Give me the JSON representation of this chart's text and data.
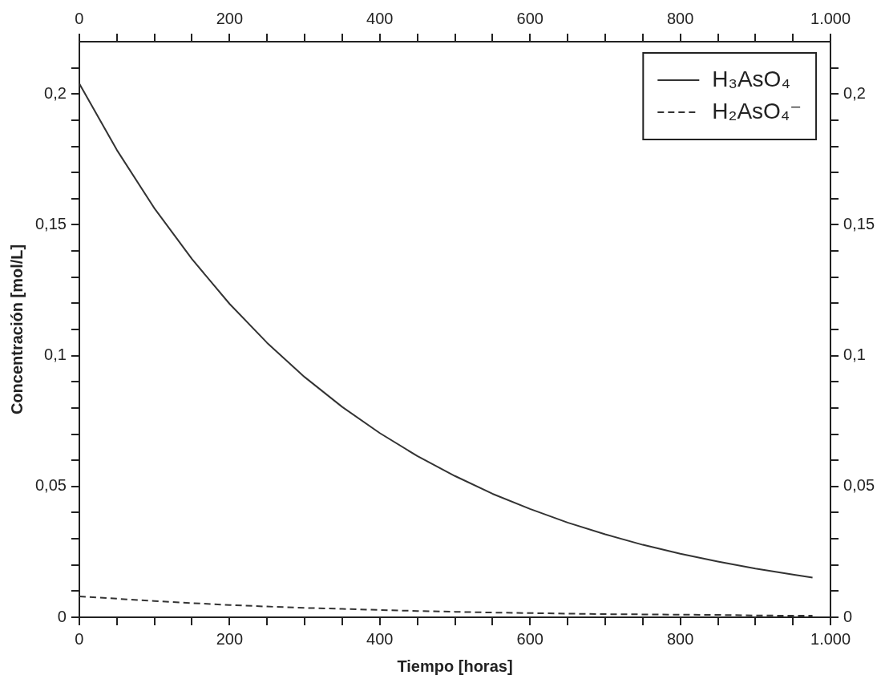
{
  "chart_data": {
    "type": "line",
    "xlabel": "Tiempo [horas]",
    "ylabel": "Concentración [mol/L]",
    "x": [
      0,
      50,
      100,
      150,
      200,
      250,
      300,
      350,
      400,
      450,
      500,
      550,
      600,
      650,
      700,
      750,
      800,
      850,
      900,
      950,
      976
    ],
    "series": [
      {
        "name": "H₃AsO₄",
        "color": "#333333",
        "line_style": "solid",
        "values": [
          0.204,
          0.1786,
          0.1563,
          0.1369,
          0.1198,
          0.1049,
          0.0918,
          0.0804,
          0.0704,
          0.0616,
          0.054,
          0.0472,
          0.0414,
          0.0362,
          0.0317,
          0.0277,
          0.0243,
          0.0213,
          0.0186,
          0.0163,
          0.0152
        ]
      },
      {
        "name": "H₂AsO₄⁻",
        "color": "#333333",
        "line_style": "dashed",
        "values": [
          0.008,
          0.0071,
          0.0062,
          0.0054,
          0.0047,
          0.0041,
          0.0036,
          0.0032,
          0.0028,
          0.0024,
          0.0021,
          0.0018,
          0.0016,
          0.0014,
          0.0012,
          0.0011,
          0.001,
          0.0009,
          0.0007,
          0.0006,
          0.0006
        ]
      }
    ],
    "xlim": [
      0,
      1000
    ],
    "xticks": [
      0,
      {
        "value": 50,
        "label": null
      },
      {
        "value": 100,
        "label": null
      },
      {
        "value": 150,
        "label": null
      },
      200,
      {
        "value": 250,
        "label": null
      },
      {
        "value": 300,
        "label": null
      },
      {
        "value": 350,
        "label": null
      },
      400,
      {
        "value": 450,
        "label": null
      },
      {
        "value": 500,
        "label": null
      },
      {
        "value": 550,
        "label": null
      },
      600,
      {
        "value": 650,
        "label": null
      },
      {
        "value": 700,
        "label": null
      },
      {
        "value": 750,
        "label": null
      },
      800,
      {
        "value": 850,
        "label": null
      },
      {
        "value": 900,
        "label": null
      },
      {
        "value": 950,
        "label": null
      },
      {
        "value": 1000,
        "label": "1.000"
      }
    ],
    "x2lim": [
      0,
      1000
    ],
    "x2ticks": [
      0,
      {
        "value": 50,
        "label": null
      },
      {
        "value": 100,
        "label": null
      },
      {
        "value": 150,
        "label": null
      },
      200,
      {
        "value": 250,
        "label": null
      },
      {
        "value": 300,
        "label": null
      },
      {
        "value": 350,
        "label": null
      },
      400,
      {
        "value": 450,
        "label": null
      },
      {
        "value": 500,
        "label": null
      },
      {
        "value": 550,
        "label": null
      },
      600,
      {
        "value": 650,
        "label": null
      },
      {
        "value": 700,
        "label": null
      },
      {
        "value": 750,
        "label": null
      },
      800,
      {
        "value": 850,
        "label": null
      },
      {
        "value": 900,
        "label": null
      },
      {
        "value": 950,
        "label": null
      },
      {
        "value": 1000,
        "label": "1.000"
      }
    ],
    "ylim": [
      0,
      0.22
    ],
    "yticks": [
      0,
      {
        "value": 0.01,
        "label": null
      },
      {
        "value": 0.02,
        "label": null
      },
      {
        "value": 0.03,
        "label": null
      },
      {
        "value": 0.04,
        "label": null
      },
      {
        "value": 0.05,
        "label": "0,05"
      },
      {
        "value": 0.06,
        "label": null
      },
      {
        "value": 0.07,
        "label": null
      },
      {
        "value": 0.08,
        "label": null
      },
      {
        "value": 0.09,
        "label": null
      },
      {
        "value": 0.1,
        "label": "0,1"
      },
      {
        "value": 0.11,
        "label": null
      },
      {
        "value": 0.12,
        "label": null
      },
      {
        "value": 0.13,
        "label": null
      },
      {
        "value": 0.14,
        "label": null
      },
      {
        "value": 0.15,
        "label": "0,15"
      },
      {
        "value": 0.16,
        "label": null
      },
      {
        "value": 0.17,
        "label": null
      },
      {
        "value": 0.18,
        "label": null
      },
      {
        "value": 0.19,
        "label": null
      },
      {
        "value": 0.2,
        "label": "0,2"
      },
      {
        "value": 0.21,
        "label": null
      }
    ],
    "y2lim": [
      0,
      0.22
    ],
    "y2ticks": [
      0,
      {
        "value": 0.01,
        "label": null
      },
      {
        "value": 0.02,
        "label": null
      },
      {
        "value": 0.03,
        "label": null
      },
      {
        "value": 0.04,
        "label": null
      },
      {
        "value": 0.05,
        "label": "0,05"
      },
      {
        "value": 0.06,
        "label": null
      },
      {
        "value": 0.07,
        "label": null
      },
      {
        "value": 0.08,
        "label": null
      },
      {
        "value": 0.09,
        "label": null
      },
      {
        "value": 0.1,
        "label": "0,1"
      },
      {
        "value": 0.11,
        "label": null
      },
      {
        "value": 0.12,
        "label": null
      },
      {
        "value": 0.13,
        "label": null
      },
      {
        "value": 0.14,
        "label": null
      },
      {
        "value": 0.15,
        "label": "0,15"
      },
      {
        "value": 0.16,
        "label": null
      },
      {
        "value": 0.17,
        "label": null
      },
      {
        "value": 0.18,
        "label": null
      },
      {
        "value": 0.19,
        "label": null
      },
      {
        "value": 0.2,
        "label": "0,2"
      },
      {
        "value": 0.21,
        "label": null
      }
    ],
    "grid": false,
    "legend": "top right",
    "marker": "none"
  }
}
